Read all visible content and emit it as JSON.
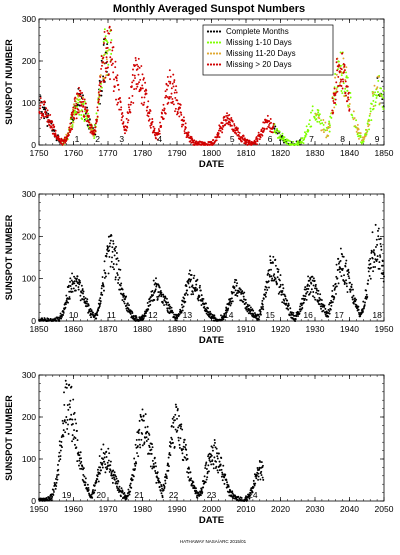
{
  "title": "Monthly Averaged Sunspot Numbers",
  "footer": "HATHAWAY  NASA/ARC 2015/01",
  "legend": [
    {
      "label": "Complete Months",
      "color": "#000000"
    },
    {
      "label": "Missing 1-10 Days",
      "color": "#7fff00"
    },
    {
      "label": "Missing 11-20 Days",
      "color": "#e0a830"
    },
    {
      "label": "Missing > 20 Days",
      "color": "#d00000"
    }
  ],
  "chart_data": [
    {
      "type": "scatter",
      "xlabel": "DATE",
      "ylabel": "SUNSPOT NUMBER",
      "xlim": [
        1750,
        1850
      ],
      "ylim": [
        0,
        300
      ],
      "xticks": [
        1750,
        1760,
        1770,
        1780,
        1790,
        1800,
        1810,
        1820,
        1830,
        1840,
        1850
      ],
      "yticks": [
        0,
        100,
        200,
        300
      ],
      "cycles": [
        {
          "label": "1",
          "x": 1761
        },
        {
          "label": "2",
          "x": 1767
        },
        {
          "label": "3",
          "x": 1774
        },
        {
          "label": "4",
          "x": 1785
        },
        {
          "label": "5",
          "x": 1806
        },
        {
          "label": "6",
          "x": 1817
        },
        {
          "label": "7",
          "x": 1829
        },
        {
          "label": "8",
          "x": 1838
        },
        {
          "label": "9",
          "x": 1848
        }
      ],
      "series": [
        {
          "name": "Complete Months",
          "color": "#000000",
          "ranges": [
            [
              1749,
              1756
            ],
            [
              1759,
              1770
            ],
            [
              1818,
              1826
            ],
            [
              1848,
              1850
            ]
          ]
        },
        {
          "name": "Missing 1-10 Days",
          "color": "#7fff00",
          "ranges": [
            [
              1757,
              1771
            ],
            [
              1818,
              1850
            ]
          ]
        },
        {
          "name": "Missing 11-20 Days",
          "color": "#e0a830",
          "ranges": [
            [
              1757,
              1770
            ],
            [
              1830,
              1849
            ]
          ]
        },
        {
          "name": "Missing > 20 Days",
          "color": "#d00000",
          "ranges": [
            [
              1749,
              1818
            ],
            [
              1835,
              1840
            ]
          ]
        }
      ],
      "max_points": [
        [
          1769.7,
          250
        ],
        [
          1778.3,
          180
        ],
        [
          1787.9,
          145
        ],
        [
          1804.3,
          65
        ],
        [
          1816.3,
          55
        ],
        [
          1829.9,
          75
        ],
        [
          1837.2,
          190
        ],
        [
          1848.1,
          140
        ],
        [
          1761.5,
          110
        ],
        [
          1750.2,
          100
        ]
      ]
    },
    {
      "type": "scatter",
      "xlabel": "DATE",
      "ylabel": "SUNSPOT NUMBER",
      "xlim": [
        1850,
        1950
      ],
      "ylim": [
        0,
        300
      ],
      "xticks": [
        1850,
        1860,
        1870,
        1880,
        1890,
        1900,
        1910,
        1920,
        1930,
        1940,
        1950
      ],
      "yticks": [
        0,
        100,
        200,
        300
      ],
      "cycles": [
        {
          "label": "10",
          "x": 1860
        },
        {
          "label": "11",
          "x": 1871
        },
        {
          "label": "12",
          "x": 1883
        },
        {
          "label": "13",
          "x": 1893
        },
        {
          "label": "14",
          "x": 1905
        },
        {
          "label": "15",
          "x": 1917
        },
        {
          "label": "16",
          "x": 1928
        },
        {
          "label": "17",
          "x": 1937
        },
        {
          "label": "18",
          "x": 1948
        }
      ],
      "series": [
        {
          "name": "Complete Months",
          "color": "#000000",
          "ranges": [
            [
              1850,
              1950
            ]
          ]
        }
      ],
      "max_points": [
        [
          1860.1,
          100
        ],
        [
          1870.6,
          175
        ],
        [
          1883.9,
          80
        ],
        [
          1894.1,
          100
        ],
        [
          1907.0,
          80
        ],
        [
          1917.6,
          130
        ],
        [
          1928.4,
          90
        ],
        [
          1937.4,
          140
        ],
        [
          1947.5,
          200
        ]
      ]
    },
    {
      "type": "scatter",
      "xlabel": "DATE",
      "ylabel": "SUNSPOT NUMBER",
      "xlim": [
        1950,
        2050
      ],
      "ylim": [
        0,
        300
      ],
      "xticks": [
        1950,
        1960,
        1970,
        1980,
        1990,
        2000,
        2010,
        2020,
        2030,
        2040,
        2050
      ],
      "yticks": [
        0,
        100,
        200,
        300
      ],
      "cycles": [
        {
          "label": "19",
          "x": 1958
        },
        {
          "label": "20",
          "x": 1968
        },
        {
          "label": "21",
          "x": 1979
        },
        {
          "label": "22",
          "x": 1989
        },
        {
          "label": "23",
          "x": 2000
        },
        {
          "label": "24",
          "x": 2012
        }
      ],
      "series": [
        {
          "name": "Complete Months",
          "color": "#000000",
          "ranges": [
            [
              1950,
              2015
            ]
          ]
        }
      ],
      "max_points": [
        [
          1958.2,
          255
        ],
        [
          1968.9,
          110
        ],
        [
          1979.9,
          190
        ],
        [
          1989.6,
          190
        ],
        [
          2000.3,
          125
        ],
        [
          2014.3,
          80
        ]
      ]
    }
  ]
}
